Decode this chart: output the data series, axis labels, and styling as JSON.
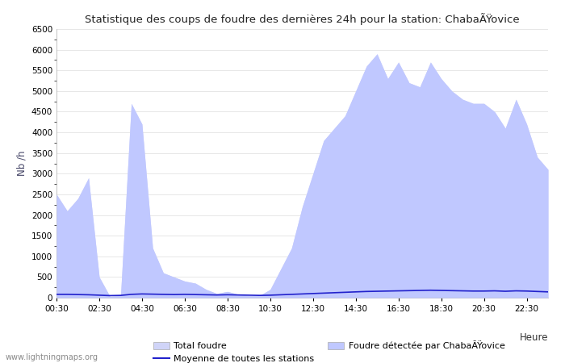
{
  "title": "Statistique des coups de foudre des dernières 24h pour la station: ChabaÃŸovice",
  "ylabel": "Nb /h",
  "xlabel_right": "Heure",
  "watermark": "www.lightningmaps.org",
  "ylim": [
    0,
    6500
  ],
  "yticks": [
    0,
    500,
    1000,
    1500,
    2000,
    2500,
    3000,
    3500,
    4000,
    4500,
    5000,
    5500,
    6000,
    6500
  ],
  "xtick_labels": [
    "00:30",
    "02:30",
    "04:30",
    "06:30",
    "08:30",
    "10:30",
    "12:30",
    "14:30",
    "16:30",
    "18:30",
    "20:30",
    "22:30"
  ],
  "legend_total": "Total foudre",
  "legend_moyenne": "Moyenne de toutes les stations",
  "legend_detected": "Foudre détectée par ChabaÃŸovice",
  "fill_total_color": "#d0d4f8",
  "fill_detected_color": "#c0c8ff",
  "line_moyenne_color": "#2222cc",
  "grid_color": "#dddddd",
  "hours": [
    0.5,
    1.0,
    1.5,
    2.0,
    2.5,
    3.0,
    3.5,
    4.0,
    4.5,
    5.0,
    5.5,
    6.0,
    6.5,
    7.0,
    7.5,
    8.0,
    8.5,
    9.0,
    9.5,
    10.0,
    10.5,
    11.0,
    11.5,
    12.0,
    12.5,
    13.0,
    13.5,
    14.0,
    14.5,
    15.0,
    15.5,
    16.0,
    16.5,
    17.0,
    17.5,
    18.0,
    18.5,
    19.0,
    19.5,
    20.0,
    20.5,
    21.0,
    21.5,
    22.0,
    22.5,
    23.0,
    23.5
  ],
  "total_foudre": [
    2500,
    2100,
    2400,
    2900,
    500,
    30,
    50,
    4700,
    4200,
    1200,
    600,
    500,
    400,
    350,
    200,
    100,
    150,
    80,
    50,
    50,
    200,
    700,
    1200,
    2200,
    3000,
    3800,
    4100,
    4400,
    5000,
    5600,
    5900,
    5300,
    5700,
    5200,
    5100,
    5700,
    5300,
    5000,
    4800,
    4700,
    4700,
    4500,
    4100,
    4800,
    4200,
    3400,
    3100
  ],
  "detected_foudre": [
    2500,
    2100,
    2400,
    2900,
    500,
    30,
    50,
    4700,
    4200,
    1200,
    600,
    500,
    400,
    350,
    200,
    100,
    150,
    80,
    50,
    50,
    200,
    700,
    1200,
    2200,
    3000,
    3800,
    4100,
    4400,
    5000,
    5600,
    5900,
    5300,
    5700,
    5200,
    5100,
    5700,
    5300,
    5000,
    4800,
    4700,
    4700,
    4500,
    4100,
    4800,
    4200,
    3400,
    3100
  ],
  "moyenne": [
    80,
    80,
    75,
    70,
    60,
    50,
    55,
    80,
    90,
    85,
    80,
    75,
    80,
    75,
    70,
    65,
    70,
    65,
    60,
    55,
    60,
    70,
    80,
    90,
    100,
    110,
    120,
    130,
    140,
    150,
    155,
    160,
    165,
    170,
    175,
    180,
    175,
    170,
    165,
    160,
    160,
    165,
    155,
    165,
    160,
    150,
    140
  ]
}
